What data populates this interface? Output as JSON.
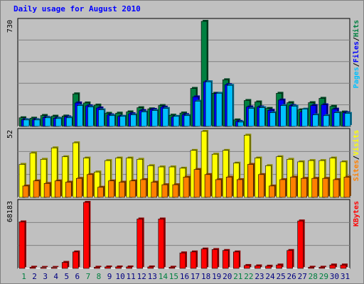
{
  "chart_data": {
    "title": "Daily usage for August 2010",
    "type": "bar",
    "days": [
      "1",
      "2",
      "3",
      "4",
      "5",
      "6",
      "7",
      "8",
      "9",
      "10",
      "11",
      "12",
      "13",
      "14",
      "15",
      "16",
      "17",
      "18",
      "19",
      "20",
      "21",
      "22",
      "23",
      "24",
      "25",
      "26",
      "27",
      "28",
      "29",
      "30",
      "31"
    ],
    "weekend_days": [
      "1",
      "7",
      "8",
      "14",
      "15",
      "21",
      "22",
      "28",
      "29"
    ],
    "colors": {
      "hits": "#008040",
      "files": "#0000ff",
      "pages": "#00c0ff",
      "visits": "#ffff00",
      "sites": "#ff8000",
      "kbytes": "#ff0000",
      "weekend_label": "#008040",
      "weekday_label": "#000080"
    },
    "panels": [
      {
        "name": "hits-files-pages",
        "ymax_label": "730",
        "ymax": 730,
        "legend": [
          {
            "text": "Pages",
            "color": "#00c0ff"
          },
          {
            "text": "/",
            "color": "#000000"
          },
          {
            "text": "Files",
            "color": "#0000ff"
          },
          {
            "text": "/",
            "color": "#000000"
          },
          {
            "text": "Hits",
            "color": "#008040"
          }
        ],
        "series": [
          {
            "name": "Hits",
            "color": "#008040",
            "values": [
              60,
              57,
              76,
              71,
              72,
              226,
              163,
              148,
              91,
              92,
              101,
              130,
              122,
              145,
              78,
              93,
              264,
              730,
              230,
              324,
              45,
              180,
              170,
              125,
              230,
              165,
              115,
              165,
              195,
              140,
              100
            ]
          },
          {
            "name": "Files",
            "color": "#0000ff",
            "values": [
              47,
              47,
              63,
              57,
              66,
              163,
              143,
              128,
              80,
              70,
              88,
              110,
              118,
              134,
              65,
              82,
              205,
              310,
              228,
              290,
              35,
              135,
              135,
              112,
              183,
              145,
              100,
              145,
              150,
              120,
              95
            ]
          },
          {
            "name": "Pages",
            "color": "#00c0ff",
            "values": [
              45,
              45,
              60,
              55,
              60,
              145,
              135,
              115,
              75,
              70,
              80,
              100,
              110,
              125,
              70,
              75,
              175,
              310,
              230,
              285,
              30,
              125,
              130,
              95,
              145,
              140,
              120,
              80,
              75,
              95,
              90
            ]
          }
        ]
      },
      {
        "name": "visits-sites",
        "ymax_label": "52",
        "ymax": 52,
        "legend": [
          {
            "text": "Sites",
            "color": "#ff8000"
          },
          {
            "text": "/",
            "color": "#000000"
          },
          {
            "text": "Visits",
            "color": "#ffff00"
          }
        ],
        "series": [
          {
            "name": "Visits",
            "color": "#ffff00",
            "values": [
              26,
              35,
              30,
              39,
              32,
              43,
              31,
              20,
              29,
              31,
              31,
              30,
              25,
              24,
              24,
              23,
              37,
              52,
              34,
              37,
              27,
              49,
              31,
              25,
              32,
              30,
              28,
              29,
              29,
              31,
              28
            ]
          },
          {
            "name": "Sites",
            "color": "#ff8000",
            "values": [
              9,
              13,
              11,
              13,
              12,
              15,
              18,
              8,
              13,
              12,
              13,
              14,
              12,
              10,
              10,
              16,
              22,
              18,
              14,
              16,
              14,
              26,
              18,
              9,
              14,
              16,
              15,
              15,
              15,
              14,
              16
            ]
          }
        ]
      },
      {
        "name": "kbytes",
        "ymax_label": "68183",
        "ymax": 68183,
        "legend": [
          {
            "text": "KBytes",
            "color": "#ff0000"
          }
        ],
        "series": [
          {
            "name": "KBytes",
            "color": "#ff0000",
            "values": [
              48000,
              1200,
              1000,
              1000,
              6200,
              17000,
              68183,
              1200,
              1500,
              1500,
              1500,
              51000,
              1500,
              51000,
              1200,
              16000,
              17000,
              20000,
              19500,
              18500,
              17000,
              3000,
              2600,
              2300,
              3500,
              18500,
              49000,
              1200,
              1200,
              3500,
              3500
            ]
          }
        ]
      }
    ]
  }
}
